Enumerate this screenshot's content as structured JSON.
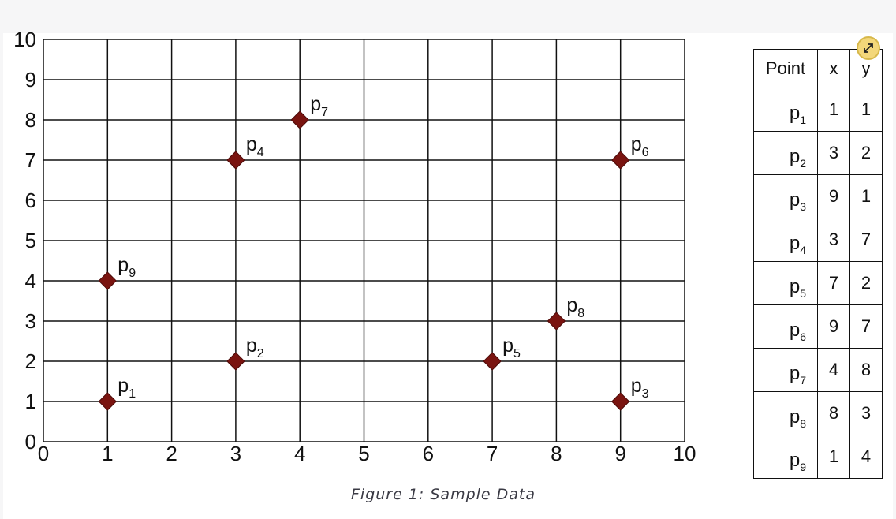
{
  "chart_data": {
    "type": "scatter",
    "xlim": [
      0,
      10
    ],
    "ylim": [
      0,
      10
    ],
    "x_ticks": [
      "0",
      "1",
      "2",
      "3",
      "4",
      "5",
      "6",
      "7",
      "8",
      "9",
      "10"
    ],
    "y_ticks": [
      "0",
      "1",
      "2",
      "3",
      "4",
      "5",
      "6",
      "7",
      "8",
      "9",
      "10"
    ],
    "grid": true,
    "marker": "diamond",
    "marker_color": "#7a1410",
    "points": [
      {
        "name": "p",
        "sub": "1",
        "x": 1,
        "y": 1
      },
      {
        "name": "p",
        "sub": "2",
        "x": 3,
        "y": 2
      },
      {
        "name": "p",
        "sub": "3",
        "x": 9,
        "y": 1
      },
      {
        "name": "p",
        "sub": "4",
        "x": 3,
        "y": 7
      },
      {
        "name": "p",
        "sub": "5",
        "x": 7,
        "y": 2
      },
      {
        "name": "p",
        "sub": "6",
        "x": 9,
        "y": 7
      },
      {
        "name": "p",
        "sub": "7",
        "x": 4,
        "y": 8
      },
      {
        "name": "p",
        "sub": "8",
        "x": 8,
        "y": 3
      },
      {
        "name": "p",
        "sub": "9",
        "x": 1,
        "y": 4
      }
    ]
  },
  "table": {
    "headers": {
      "point": "Point",
      "x": "x",
      "y": "y"
    }
  },
  "caption": "Figure 1: Sample Data",
  "expand_icon": "expand-arrows-icon"
}
